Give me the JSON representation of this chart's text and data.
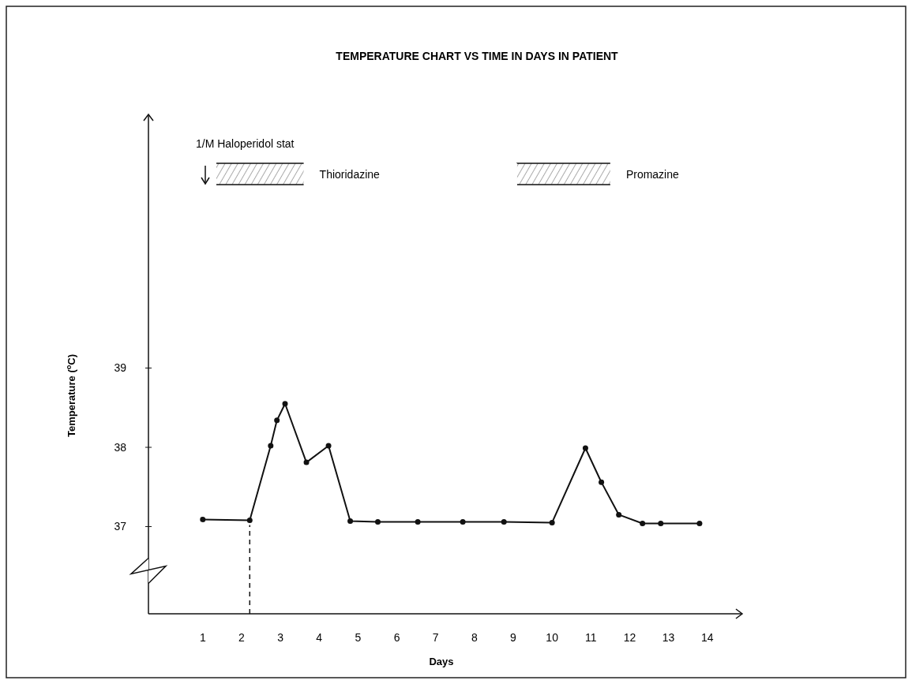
{
  "chart_data": {
    "type": "line",
    "title": "TEMPERATURE CHART VS TIME IN DAYS IN PATIENT",
    "xlabel": "Days",
    "ylabel": "Temperature ($^{o}$C)",
    "series": [
      {
        "color": "#111111",
        "x": [
          1,
          2.21,
          2.75,
          2.91,
          3.12,
          3.67,
          4.24,
          4.8,
          5.51,
          6.54,
          7.7,
          8.76,
          10,
          10.86,
          11.27,
          11.72,
          12.33,
          12.8,
          13.8
        ],
        "values": [
          37.09,
          37.08,
          38.02,
          38.34,
          38.55,
          37.81,
          38.02,
          37.07,
          37.06,
          37.06,
          37.06,
          37.06,
          37.05,
          37.99,
          37.56,
          37.15,
          37.04,
          37.04,
          37.04
        ]
      }
    ],
    "xlim": [
      -0.4,
      14.9
    ],
    "xticks": [
      1,
      2,
      3,
      4,
      5,
      6,
      7,
      8,
      9,
      10,
      11,
      12,
      13,
      14
    ],
    "ylim": [
      35.9,
      42.2
    ],
    "yticks": [
      37,
      38,
      39
    ],
    "marker": "circle",
    "line_style": "solid",
    "grid": false,
    "annotations": [
      "1/M Haloperidol stat"
    ],
    "ref_lines": [
      {
        "axis": "x",
        "value": 2.21,
        "line_style": "dashed",
        "color": "#111111"
      }
    ],
    "bands": [
      {
        "axis": "x",
        "from": 1.35,
        "to": 3.6,
        "label": "Thioridazine",
        "color": "#111111"
      },
      {
        "axis": "x",
        "from": 9.1,
        "to": 11.5,
        "label": "Promazine",
        "color": "#111111"
      }
    ]
  }
}
